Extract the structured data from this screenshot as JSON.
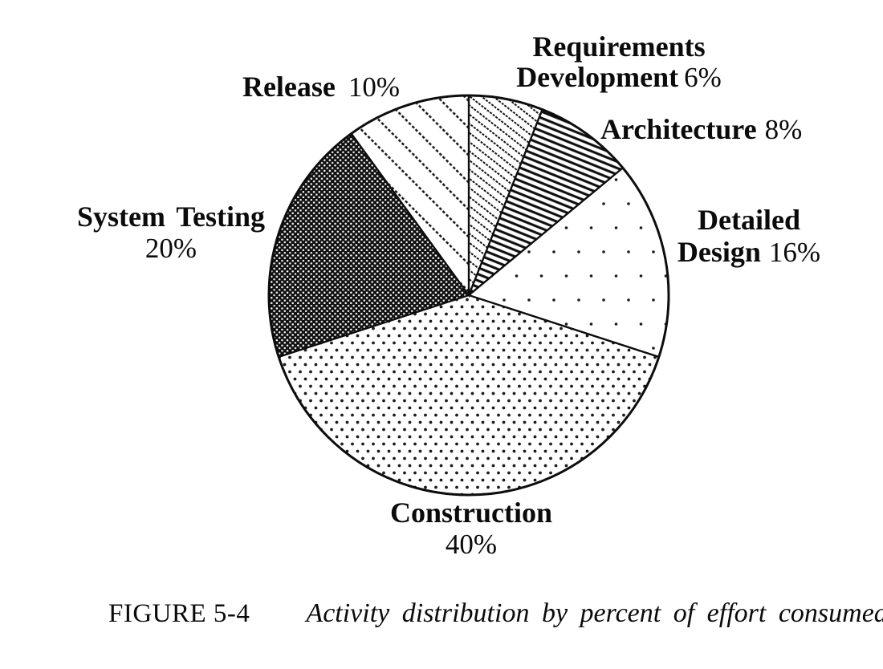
{
  "figure": {
    "caption_label": "FIGURE 5-4",
    "caption_text": "Activity distribution by percent of effort consumed."
  },
  "labels": {
    "requirements_development": {
      "line1": "Requirements",
      "line2": "Development",
      "pct": "6%"
    },
    "architecture": {
      "name": "Architecture",
      "pct": "8%"
    },
    "detailed_design": {
      "line1": "Detailed",
      "line2": "Design",
      "pct": "16%"
    },
    "construction": {
      "name": "Construction",
      "pct": "40%"
    },
    "system_testing": {
      "name": "System Testing",
      "pct": "20%"
    },
    "release": {
      "name": "Release",
      "pct": "10%"
    }
  },
  "chart_data": {
    "type": "pie",
    "title": "Activity distribution by percent of effort consumed",
    "categories": [
      "Requirements Development",
      "Architecture",
      "Detailed Design",
      "Construction",
      "System Testing",
      "Release"
    ],
    "values": [
      6,
      8,
      16,
      40,
      20,
      10
    ],
    "unit": "percent of effort",
    "start_angle_deg": 0,
    "direction": "clockwise",
    "legend": "none",
    "slices": [
      {
        "key": "requirements-development",
        "label": "Requirements Development",
        "value": 6,
        "pattern": "diagonal-thin"
      },
      {
        "key": "architecture",
        "label": "Architecture",
        "value": 8,
        "pattern": "diagonal-dense"
      },
      {
        "key": "detailed-design",
        "label": "Detailed Design",
        "value": 16,
        "pattern": "dots-sparse"
      },
      {
        "key": "construction",
        "label": "Construction",
        "value": 40,
        "pattern": "dots-medium"
      },
      {
        "key": "system-testing",
        "label": "System Testing",
        "value": 20,
        "pattern": "crosshatch-dark"
      },
      {
        "key": "release",
        "label": "Release",
        "value": 10,
        "pattern": "diagonal-wide"
      }
    ],
    "colors": {
      "ink": "#0d0d0d",
      "paper": "#ffffff"
    }
  }
}
